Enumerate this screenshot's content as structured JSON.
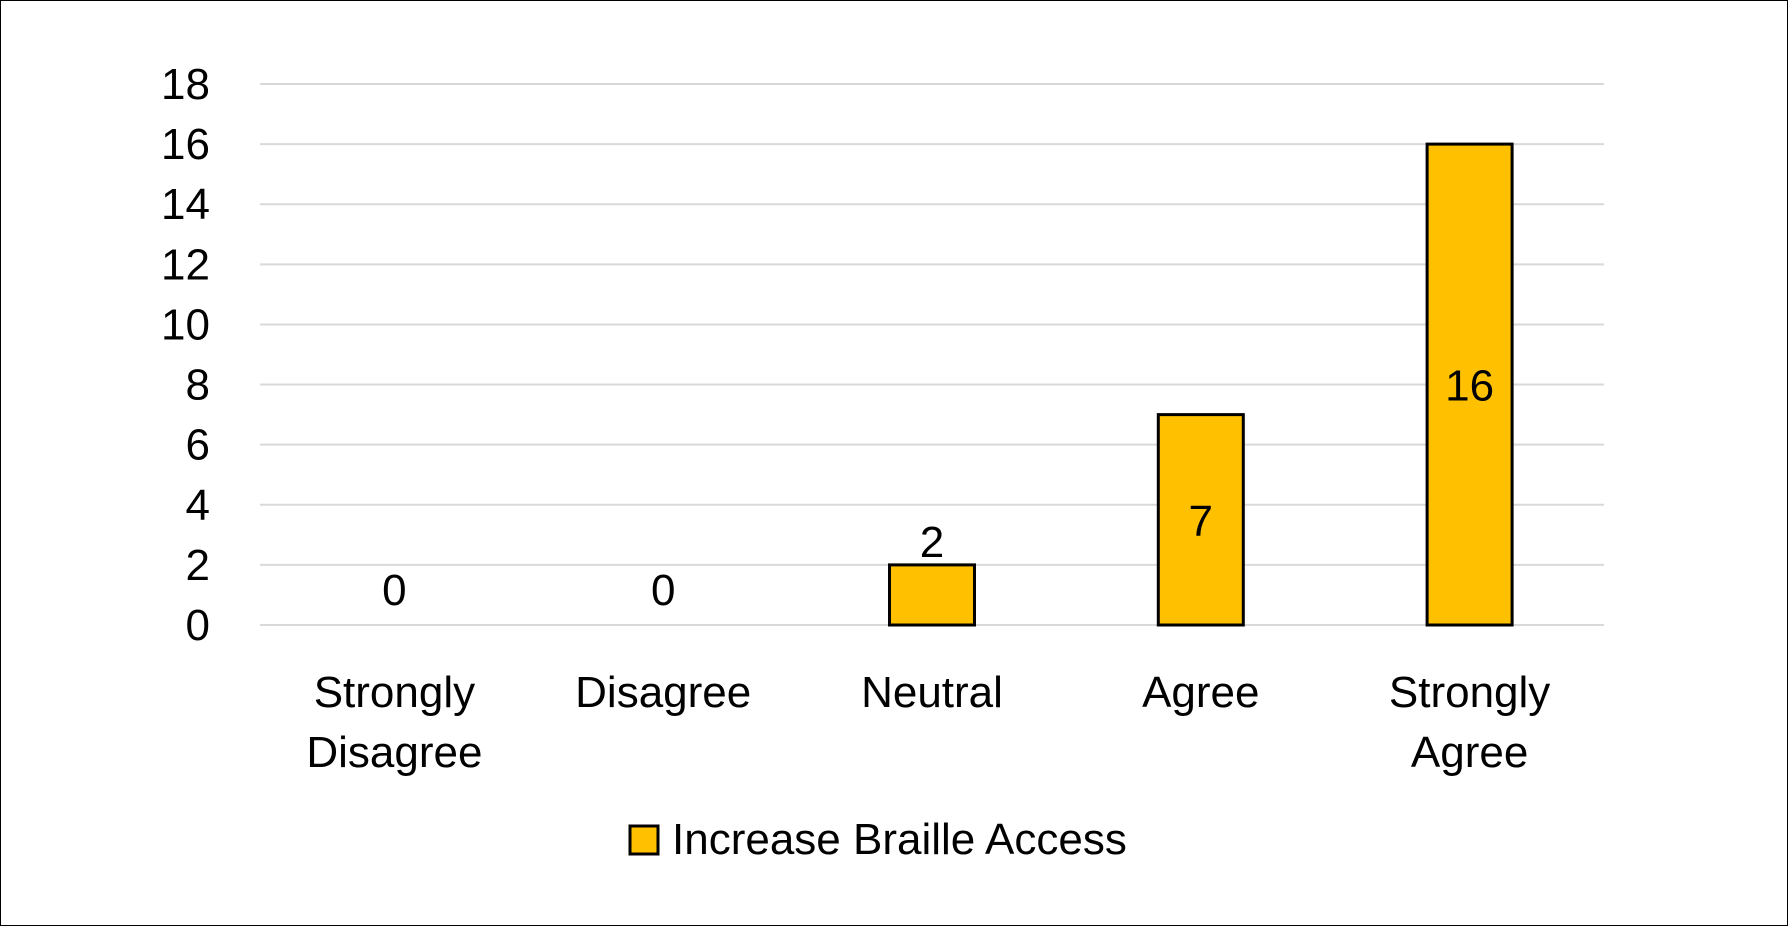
{
  "chart_data": {
    "type": "bar",
    "categories": [
      [
        "Strongly",
        "Disagree"
      ],
      [
        "Disagree"
      ],
      [
        "Neutral"
      ],
      [
        "Agree"
      ],
      [
        "Strongly",
        "Agree"
      ]
    ],
    "series": [
      {
        "name": "Increase Braille Access",
        "values": [
          0,
          0,
          2,
          7,
          16
        ],
        "color": "#FFC000"
      }
    ],
    "data_labels": [
      "0",
      "0",
      "2",
      "7",
      "16"
    ],
    "ylim": [
      0,
      18
    ],
    "yticks": [
      0,
      2,
      4,
      6,
      8,
      10,
      12,
      14,
      16,
      18
    ],
    "grid": true,
    "legend": "bottom",
    "title": "",
    "xlabel": "",
    "ylabel": ""
  }
}
